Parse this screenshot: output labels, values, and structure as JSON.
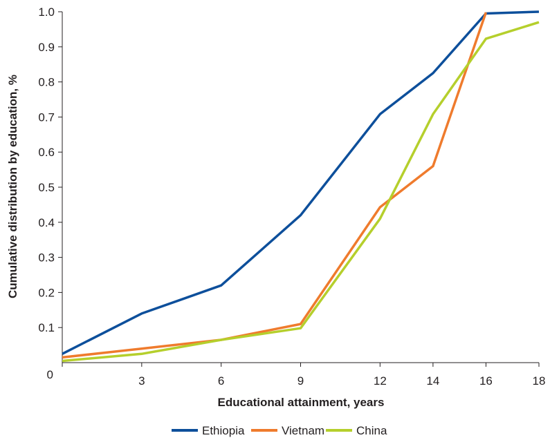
{
  "chart_data": {
    "type": "line",
    "xlabel": "Educational attainment, years",
    "ylabel": "Cumulative distribution by education, %",
    "x_ticks": [
      0,
      3,
      6,
      9,
      12,
      14,
      16,
      18
    ],
    "y_ticks": [
      0,
      0.1,
      0.2,
      0.3,
      0.4,
      0.5,
      0.6,
      0.7,
      0.8,
      0.9,
      1.0
    ],
    "y_tick_labels": [
      "0",
      "0.1",
      "0.2",
      "0.3",
      "0.4",
      "0.5",
      "0.6",
      "0.7",
      "0.8",
      "0.9",
      "1.0"
    ],
    "ylim": [
      0,
      1.0
    ],
    "grid": false,
    "legend_position": "bottom",
    "series": [
      {
        "name": "Ethiopia",
        "color": "#0d4f9b",
        "points": [
          [
            0,
            0.025
          ],
          [
            3,
            0.14
          ],
          [
            6,
            0.22
          ],
          [
            9,
            0.42
          ],
          [
            12,
            0.708
          ],
          [
            14,
            0.825
          ],
          [
            16,
            0.995
          ],
          [
            18,
            1.0
          ]
        ]
      },
      {
        "name": "Vietnam",
        "color": "#ef7b2d",
        "points": [
          [
            0,
            0.015
          ],
          [
            3,
            0.04
          ],
          [
            6,
            0.065
          ],
          [
            9,
            0.11
          ],
          [
            12,
            0.443
          ],
          [
            14,
            0.56
          ],
          [
            16,
            0.998
          ]
        ]
      },
      {
        "name": "China",
        "color": "#b5cf2c",
        "points": [
          [
            0,
            0.005
          ],
          [
            3,
            0.025
          ],
          [
            6,
            0.065
          ],
          [
            9,
            0.098
          ],
          [
            12,
            0.41
          ],
          [
            14,
            0.708
          ],
          [
            16,
            0.923
          ],
          [
            18,
            0.97
          ]
        ]
      }
    ]
  }
}
